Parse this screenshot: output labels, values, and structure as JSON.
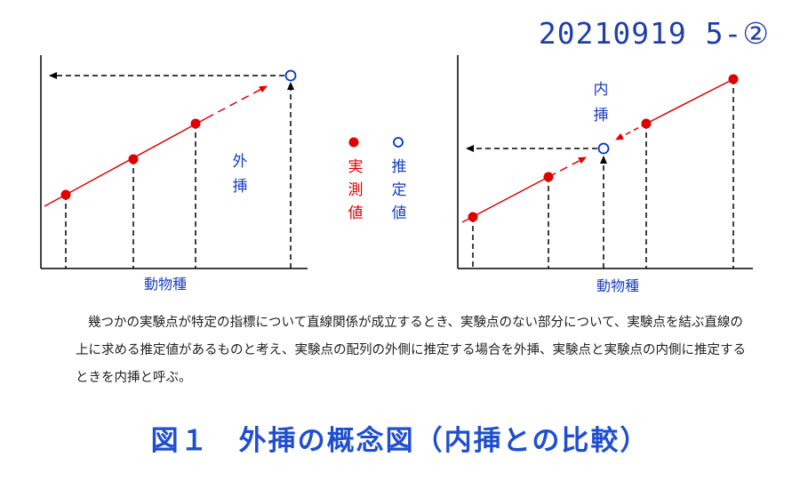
{
  "header": {
    "doc_id": "20210919 5-②"
  },
  "legend": {
    "measured_label": "実測値",
    "estimated_label": "推定値",
    "measured_color": "#e00000",
    "estimated_color": "#0033cc"
  },
  "left_panel": {
    "xlabel": "動物種",
    "annotation": "外挿",
    "measured_points": [
      1,
      2,
      3
    ],
    "estimated_point": 4
  },
  "right_panel": {
    "xlabel": "動物種",
    "annotation": "内挿",
    "measured_points": [
      1,
      2,
      4,
      5
    ],
    "estimated_point": 3
  },
  "description": "幾つかの実験点が特定の指標について直線関係が成立するとき、実験点のない部分について、実験点を結ぶ直線の上に求める推定値があるものと考え、実験点の配列の外側に推定する場合を外挿、実験点と実験点の内側に推定するときを内挿と呼ぶ。",
  "figure_caption": "図１　外挿の概念図（内挿との比較）"
}
